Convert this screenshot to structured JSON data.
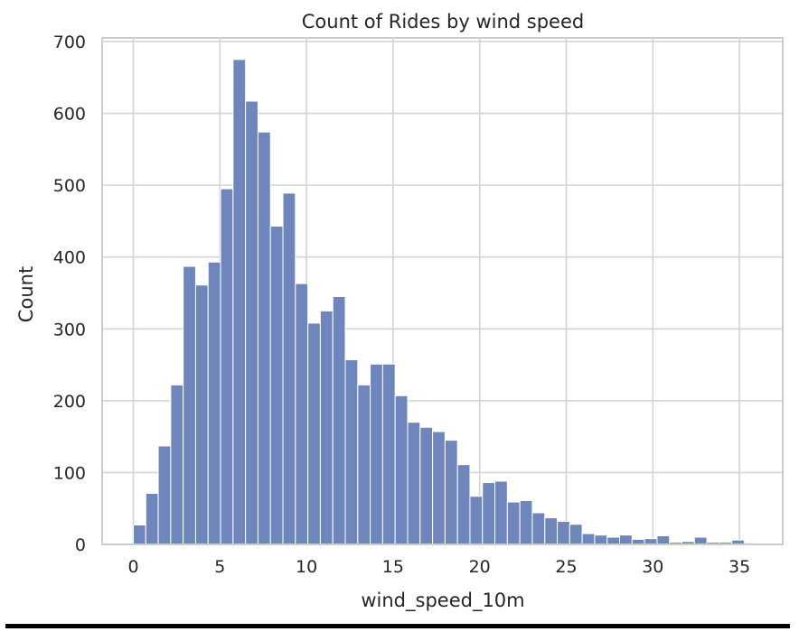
{
  "chart_data": {
    "type": "bar",
    "title": "Count of Rides by wind speed",
    "xlabel": "wind_speed_10m",
    "ylabel": "Count",
    "xlim": [
      -1.8,
      37.5
    ],
    "ylim": [
      0,
      705
    ],
    "xticks": [
      0,
      5,
      10,
      15,
      20,
      25,
      30,
      35
    ],
    "yticks": [
      0,
      100,
      200,
      300,
      400,
      500,
      600,
      700
    ],
    "grid": true,
    "bin_width": 0.72,
    "bin_start": 0.0,
    "values": [
      27,
      71,
      137,
      222,
      387,
      361,
      393,
      495,
      675,
      617,
      574,
      443,
      489,
      363,
      308,
      325,
      345,
      257,
      222,
      251,
      251,
      207,
      170,
      163,
      157,
      145,
      111,
      67,
      86,
      88,
      59,
      61,
      44,
      37,
      32,
      28,
      15,
      13,
      10,
      13,
      7,
      8,
      12,
      3,
      4,
      10,
      3,
      3,
      6,
      2,
      1
    ],
    "bar_color": "#6f86bd",
    "bar_edge_color": "#ffffff"
  }
}
